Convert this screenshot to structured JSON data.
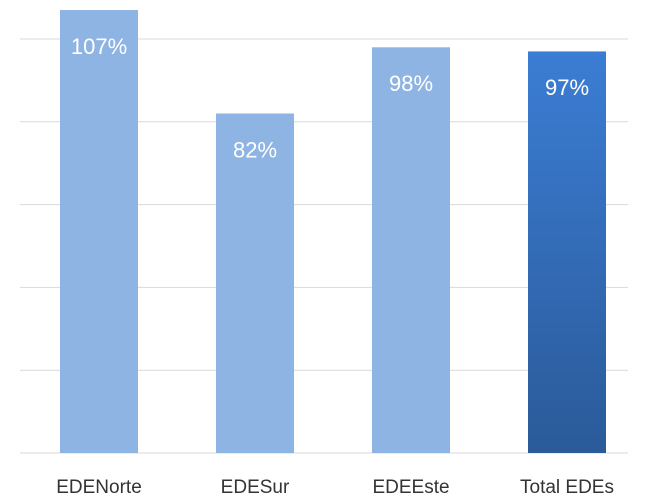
{
  "chart_data": {
    "type": "bar",
    "categories": [
      "EDENorte",
      "EDESur",
      "EDEEste",
      "Total EDEs"
    ],
    "values": [
      107,
      82,
      98,
      97
    ],
    "value_labels": [
      "107%",
      "82%",
      "98%",
      "97%"
    ],
    "colors": [
      "#8eb4e3",
      "#8eb4e3",
      "#8eb4e3",
      "#3b7dd4"
    ],
    "ylim": [
      0,
      100
    ],
    "yticks": [
      0,
      20,
      40,
      60,
      80,
      100
    ],
    "grid": true
  }
}
